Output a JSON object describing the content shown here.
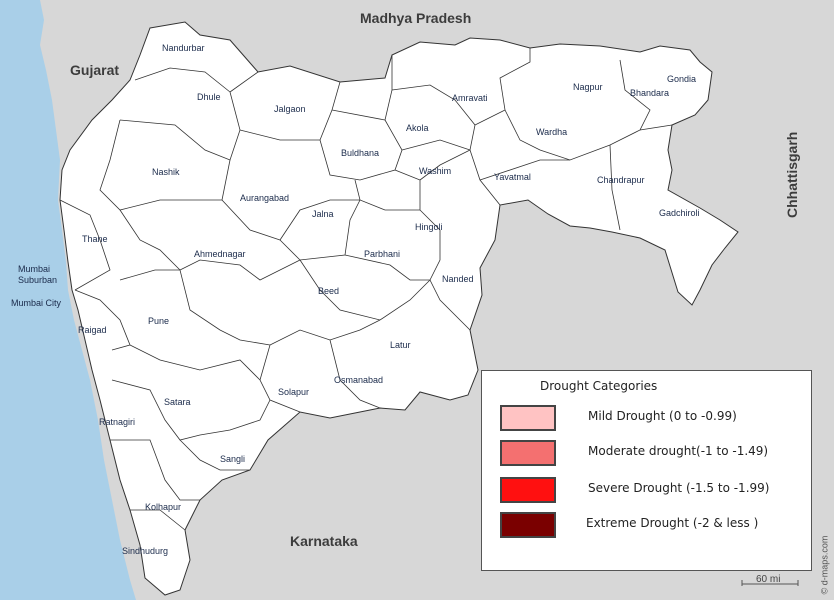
{
  "map": {
    "neighbors": {
      "madhya_pradesh": "Madhya Pradesh",
      "gujarat": "Gujarat",
      "chhattisgarh": "Chhattisgarh",
      "karnataka": "Karnataka"
    },
    "districts": {
      "nandurbar": "Nandurbar",
      "dhule": "Dhule",
      "jalgaon": "Jalgaon",
      "nashik": "Nashik",
      "aurangabad": "Aurangabad",
      "buldhana": "Buldhana",
      "akola": "Akola",
      "amravati": "Amravati",
      "nagpur": "Nagpur",
      "bhandara": "Bhandara",
      "gondia": "Gondia",
      "wardha": "Wardha",
      "washim": "Washim",
      "yavatmal": "Yavatmal",
      "chandrapur": "Chandrapur",
      "gadchiroli": "Gadchiroli",
      "thane": "Thane",
      "mumbai_suburban": "Mumbai Suburban",
      "mumbai_city": "Mumbai City",
      "ahmednagar": "Ahmednagar",
      "jalna": "Jalna",
      "hingoli": "Hingoli",
      "parbhani": "Parbhani",
      "nanded": "Nanded",
      "beed": "Beed",
      "raigad": "Raigad",
      "pune": "Pune",
      "latur": "Latur",
      "osmanabad": "Osmanabad",
      "solapur": "Solapur",
      "satara": "Satara",
      "ratnagiri": "Ratnagiri",
      "sangli": "Sangli",
      "kolhapur": "Kolhapur",
      "sindhudurg": "Sindhudurg"
    },
    "colors": {
      "land_other": "#d7d7d7",
      "sea": "#a9cfe8",
      "state_fill": "#ffffff",
      "border": "#333333"
    }
  },
  "legend": {
    "title": "Drought Categories",
    "items": [
      {
        "label": "Mild Drought (0 to -0.99)",
        "color": "#ffc3c3"
      },
      {
        "label": "Moderate drought(-1 to -1.49)",
        "color": "#f47070"
      },
      {
        "label": "Severe  Drought (-1.5 to -1.99)",
        "color": "#ff1010"
      },
      {
        "label": "Extreme Drought (-2 & less )",
        "color": "#7a0000"
      }
    ]
  },
  "scale": {
    "label": "60 mi"
  },
  "credit": {
    "text": "© d-maps.com"
  }
}
